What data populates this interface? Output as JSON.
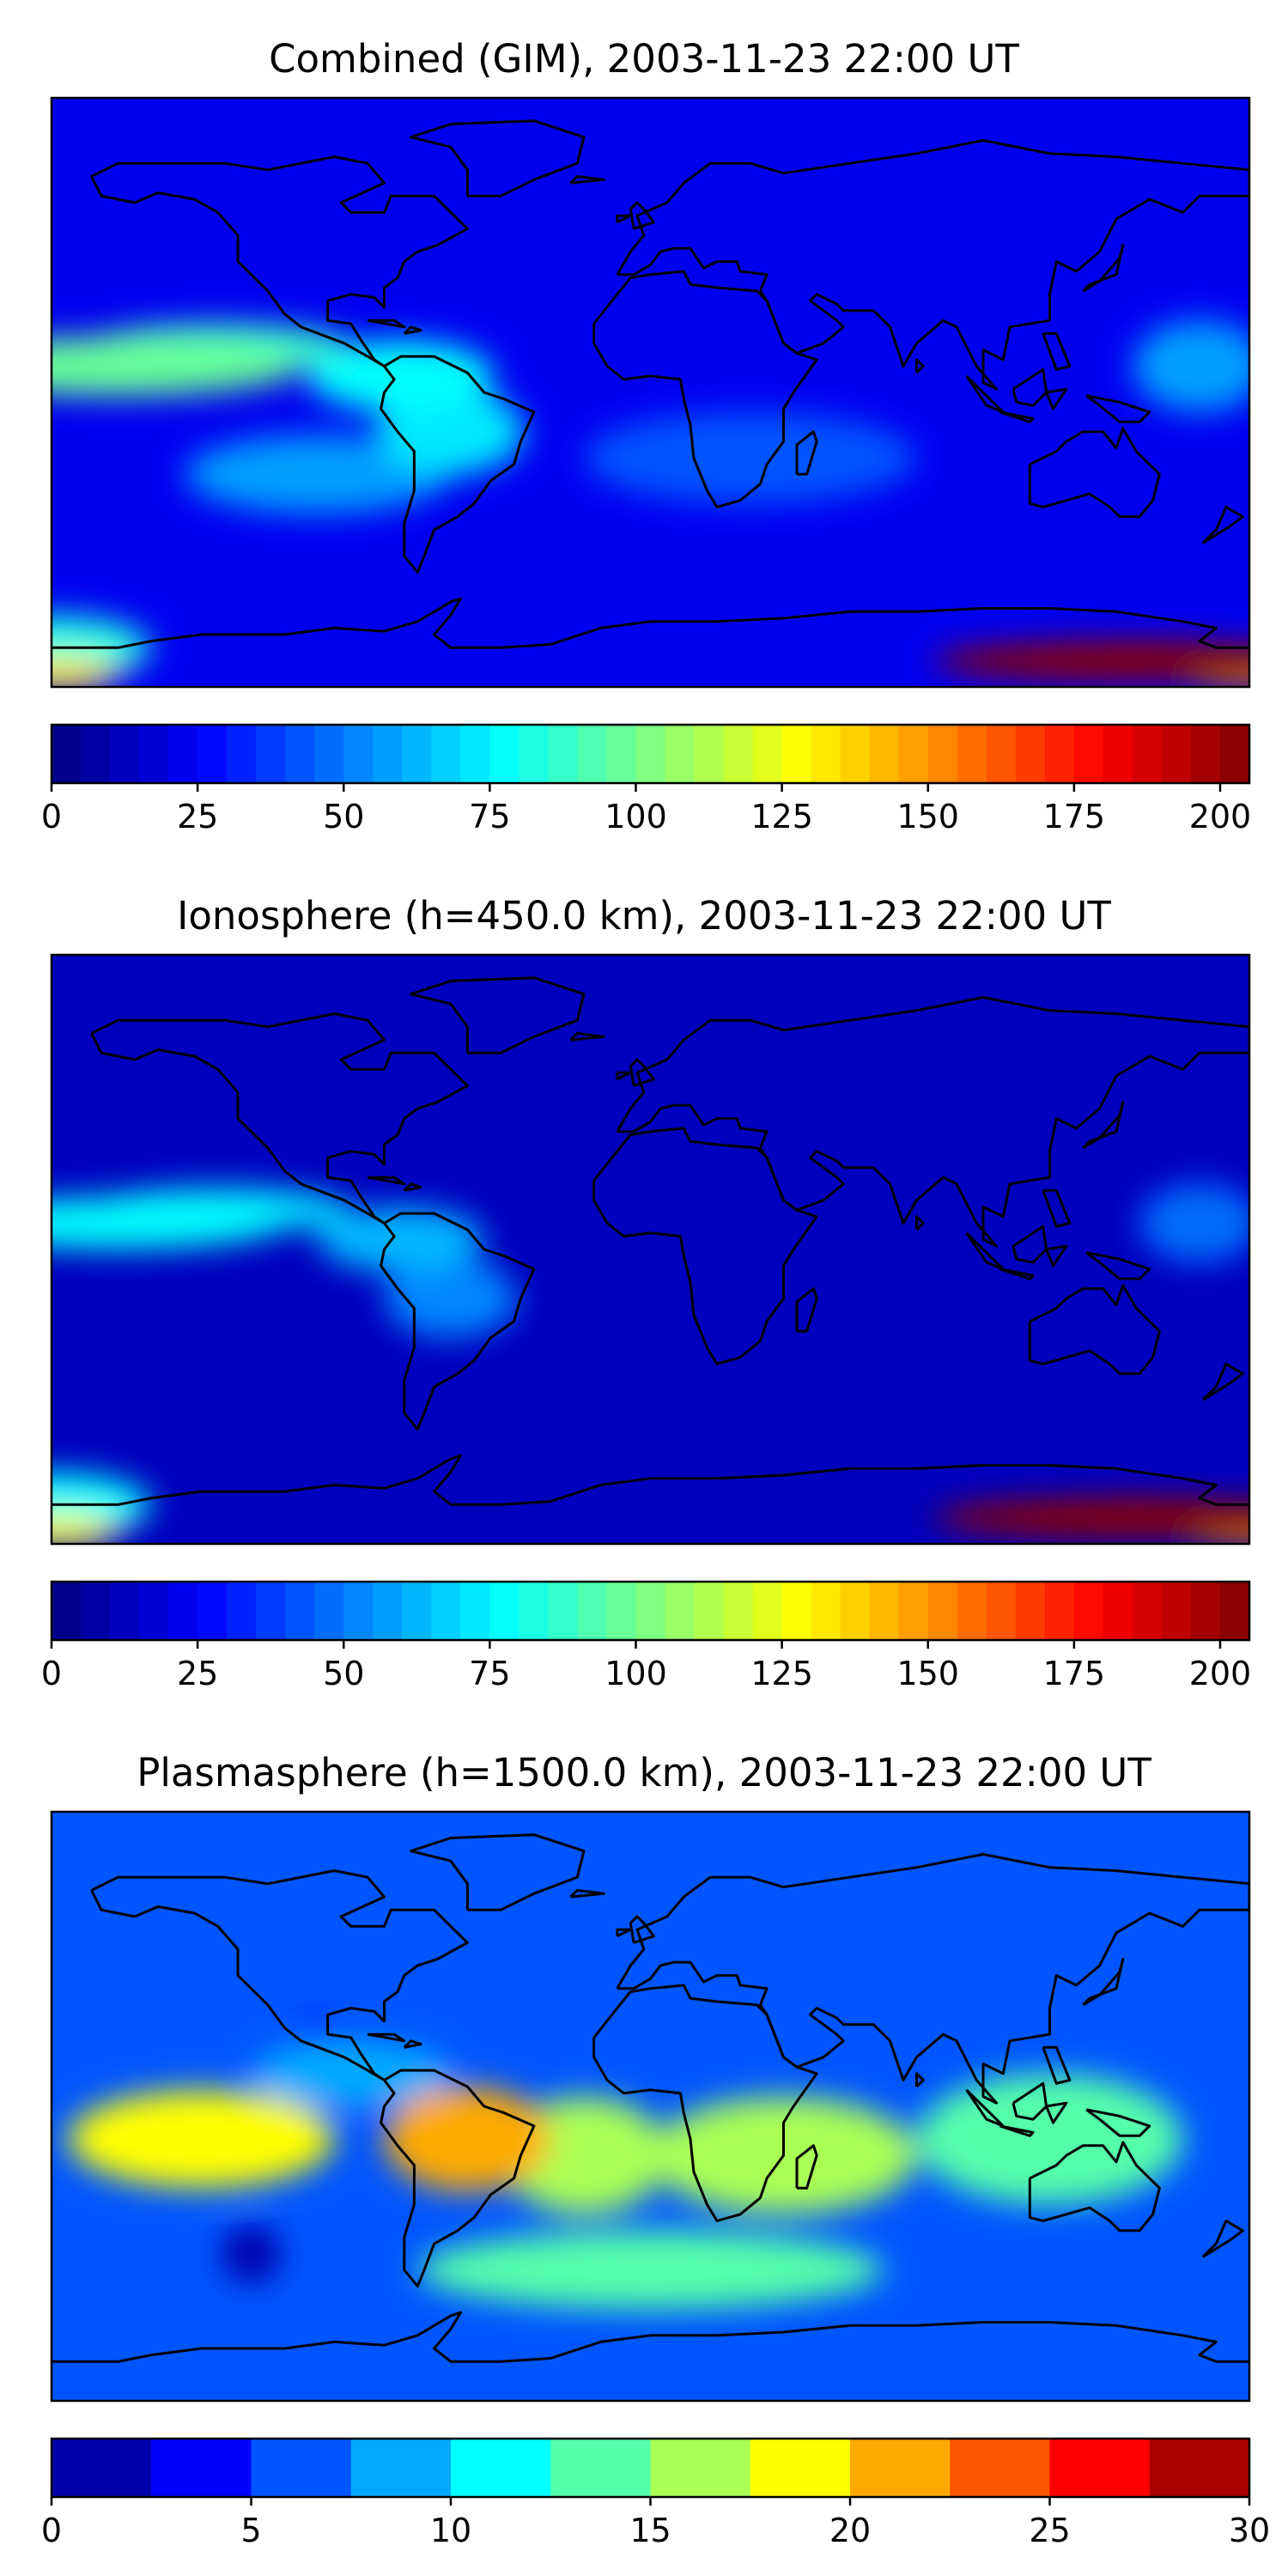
{
  "chart_data": [
    {
      "type": "heatmap",
      "title": "Combined (GIM), 2003-11-23 22:00 UT",
      "xlabel": "",
      "ylabel": "",
      "colormap": "jet",
      "colorbar": {
        "vmin": 0,
        "vmax": 205,
        "ticks": [
          0,
          25,
          50,
          75,
          100,
          125,
          150,
          175,
          200
        ],
        "levels": 41
      },
      "features": [
        {
          "lon": -160,
          "lat": 8,
          "value": 95,
          "rx": 55,
          "ry": 9
        },
        {
          "lon": -130,
          "lat": 14,
          "value": 85,
          "rx": 40,
          "ry": 7
        },
        {
          "lon": -75,
          "lat": 5,
          "value": 78,
          "rx": 28,
          "ry": 11
        },
        {
          "lon": -60,
          "lat": -12,
          "value": 70,
          "rx": 22,
          "ry": 13
        },
        {
          "lon": -100,
          "lat": -25,
          "value": 55,
          "rx": 40,
          "ry": 12
        },
        {
          "lon": 165,
          "lat": 8,
          "value": 55,
          "rx": 20,
          "ry": 14
        },
        {
          "lon": 30,
          "lat": -20,
          "value": 40,
          "rx": 50,
          "ry": 14
        },
        {
          "lon": 145,
          "lat": -82,
          "value": 205,
          "rx": 60,
          "ry": 6
        },
        {
          "lon": 180,
          "lat": -84,
          "value": 150,
          "rx": 25,
          "ry": 6
        },
        {
          "lon": -180,
          "lat": -86,
          "value": 130,
          "rx": 20,
          "ry": 5
        },
        {
          "lon": -180,
          "lat": -78,
          "value": 80,
          "rx": 30,
          "ry": 10
        }
      ],
      "background_value": 22
    },
    {
      "type": "heatmap",
      "title": "Ionosphere  (h=450.0 km), 2003-11-23 22:00 UT",
      "xlabel": "",
      "ylabel": "",
      "colormap": "jet",
      "colorbar": {
        "vmin": 0,
        "vmax": 205,
        "ticks": [
          0,
          25,
          50,
          75,
          100,
          125,
          150,
          175,
          200
        ],
        "levels": 41
      },
      "features": [
        {
          "lon": -160,
          "lat": 8,
          "value": 78,
          "rx": 50,
          "ry": 8
        },
        {
          "lon": -130,
          "lat": 12,
          "value": 70,
          "rx": 40,
          "ry": 7
        },
        {
          "lon": -75,
          "lat": 3,
          "value": 60,
          "rx": 25,
          "ry": 10
        },
        {
          "lon": -60,
          "lat": -15,
          "value": 50,
          "rx": 20,
          "ry": 12
        },
        {
          "lon": 165,
          "lat": 8,
          "value": 45,
          "rx": 18,
          "ry": 12
        },
        {
          "lon": 145,
          "lat": -82,
          "value": 200,
          "rx": 60,
          "ry": 6
        },
        {
          "lon": 180,
          "lat": -84,
          "value": 150,
          "rx": 25,
          "ry": 6
        },
        {
          "lon": -180,
          "lat": -86,
          "value": 125,
          "rx": 20,
          "ry": 5
        },
        {
          "lon": -180,
          "lat": -78,
          "value": 75,
          "rx": 30,
          "ry": 10
        }
      ],
      "background_value": 14
    },
    {
      "type": "heatmap",
      "title": "Plasmasphere (h=1500.0 km), 2003-11-23 22:00 UT",
      "xlabel": "",
      "ylabel": "",
      "colormap": "jet",
      "colorbar": {
        "vmin": 0,
        "vmax": 30,
        "ticks": [
          0,
          5,
          10,
          15,
          20,
          25,
          30
        ],
        "levels": 12
      },
      "features": [
        {
          "lon": -135,
          "lat": -10,
          "value": 19,
          "rx": 40,
          "ry": 15
        },
        {
          "lon": -55,
          "lat": -10,
          "value": 20,
          "rx": 25,
          "ry": 16
        },
        {
          "lon": -20,
          "lat": -15,
          "value": 16,
          "rx": 25,
          "ry": 18
        },
        {
          "lon": 40,
          "lat": -15,
          "value": 15,
          "rx": 40,
          "ry": 18
        },
        {
          "lon": 120,
          "lat": -10,
          "value": 13,
          "rx": 40,
          "ry": 20
        },
        {
          "lon": -90,
          "lat": 10,
          "value": 8,
          "rx": 30,
          "ry": 10
        },
        {
          "lon": -120,
          "lat": -45,
          "value": 2,
          "rx": 9,
          "ry": 9
        },
        {
          "lon": -100,
          "lat": 20,
          "value": 3,
          "rx": 6,
          "ry": 7
        },
        {
          "lon": 0,
          "lat": -50,
          "value": 13,
          "rx": 70,
          "ry": 12
        }
      ],
      "background_value": 6
    }
  ]
}
